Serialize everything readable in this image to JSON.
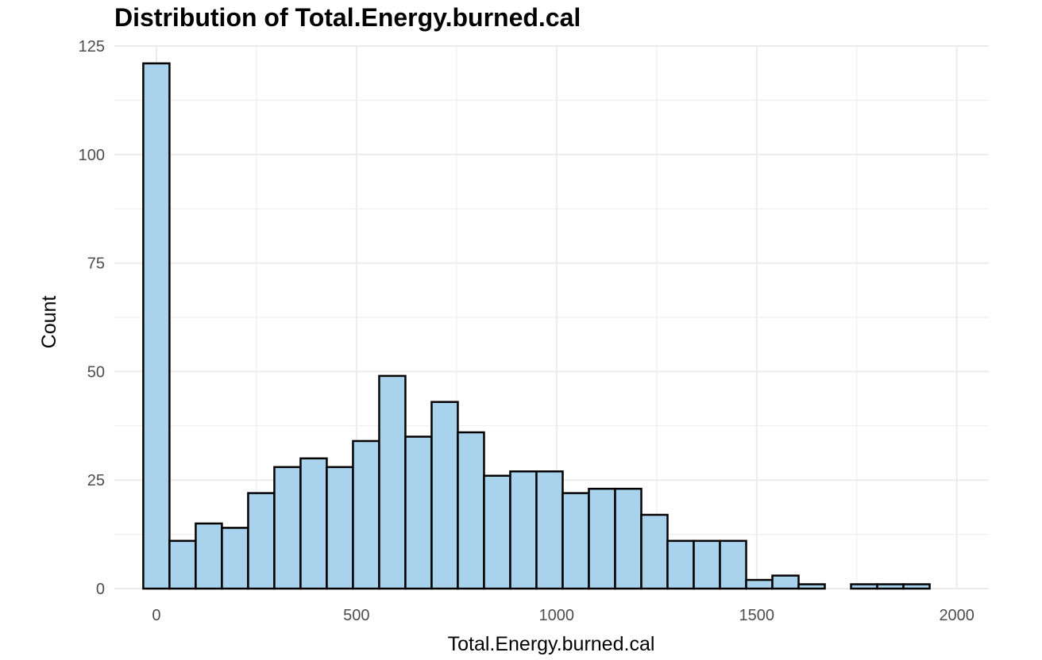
{
  "chart_data": {
    "type": "bar",
    "title": "Distribution of Total.Energy.burned.cal",
    "xlabel": "Total.Energy.burned.cal",
    "ylabel": "Count",
    "xlim": [
      -105,
      2080
    ],
    "ylim": [
      0,
      125
    ],
    "x_ticks": [
      0,
      500,
      1000,
      1500,
      2000
    ],
    "y_ticks": [
      0,
      25,
      50,
      75,
      100,
      125
    ],
    "bin_width": 65.5,
    "bin_centers": [
      0,
      65.5,
      131,
      196.5,
      262,
      327.5,
      393,
      458.5,
      524,
      589.5,
      655,
      720.5,
      786,
      851.5,
      917,
      982.5,
      1048,
      1113.5,
      1179,
      1244.5,
      1310,
      1375.5,
      1441,
      1506.5,
      1572,
      1637.5,
      1703,
      1768.5,
      1834,
      1899.5
    ],
    "values": [
      121,
      11,
      15,
      14,
      22,
      28,
      30,
      28,
      34,
      49,
      35,
      43,
      36,
      26,
      27,
      27,
      22,
      23,
      23,
      17,
      11,
      11,
      11,
      2,
      3,
      1,
      0,
      1,
      1,
      1
    ],
    "fill_color": "#a9d2ec",
    "edge_color": "#000000",
    "grid": true,
    "grid_color": "#ebebeb",
    "legend": "none"
  }
}
